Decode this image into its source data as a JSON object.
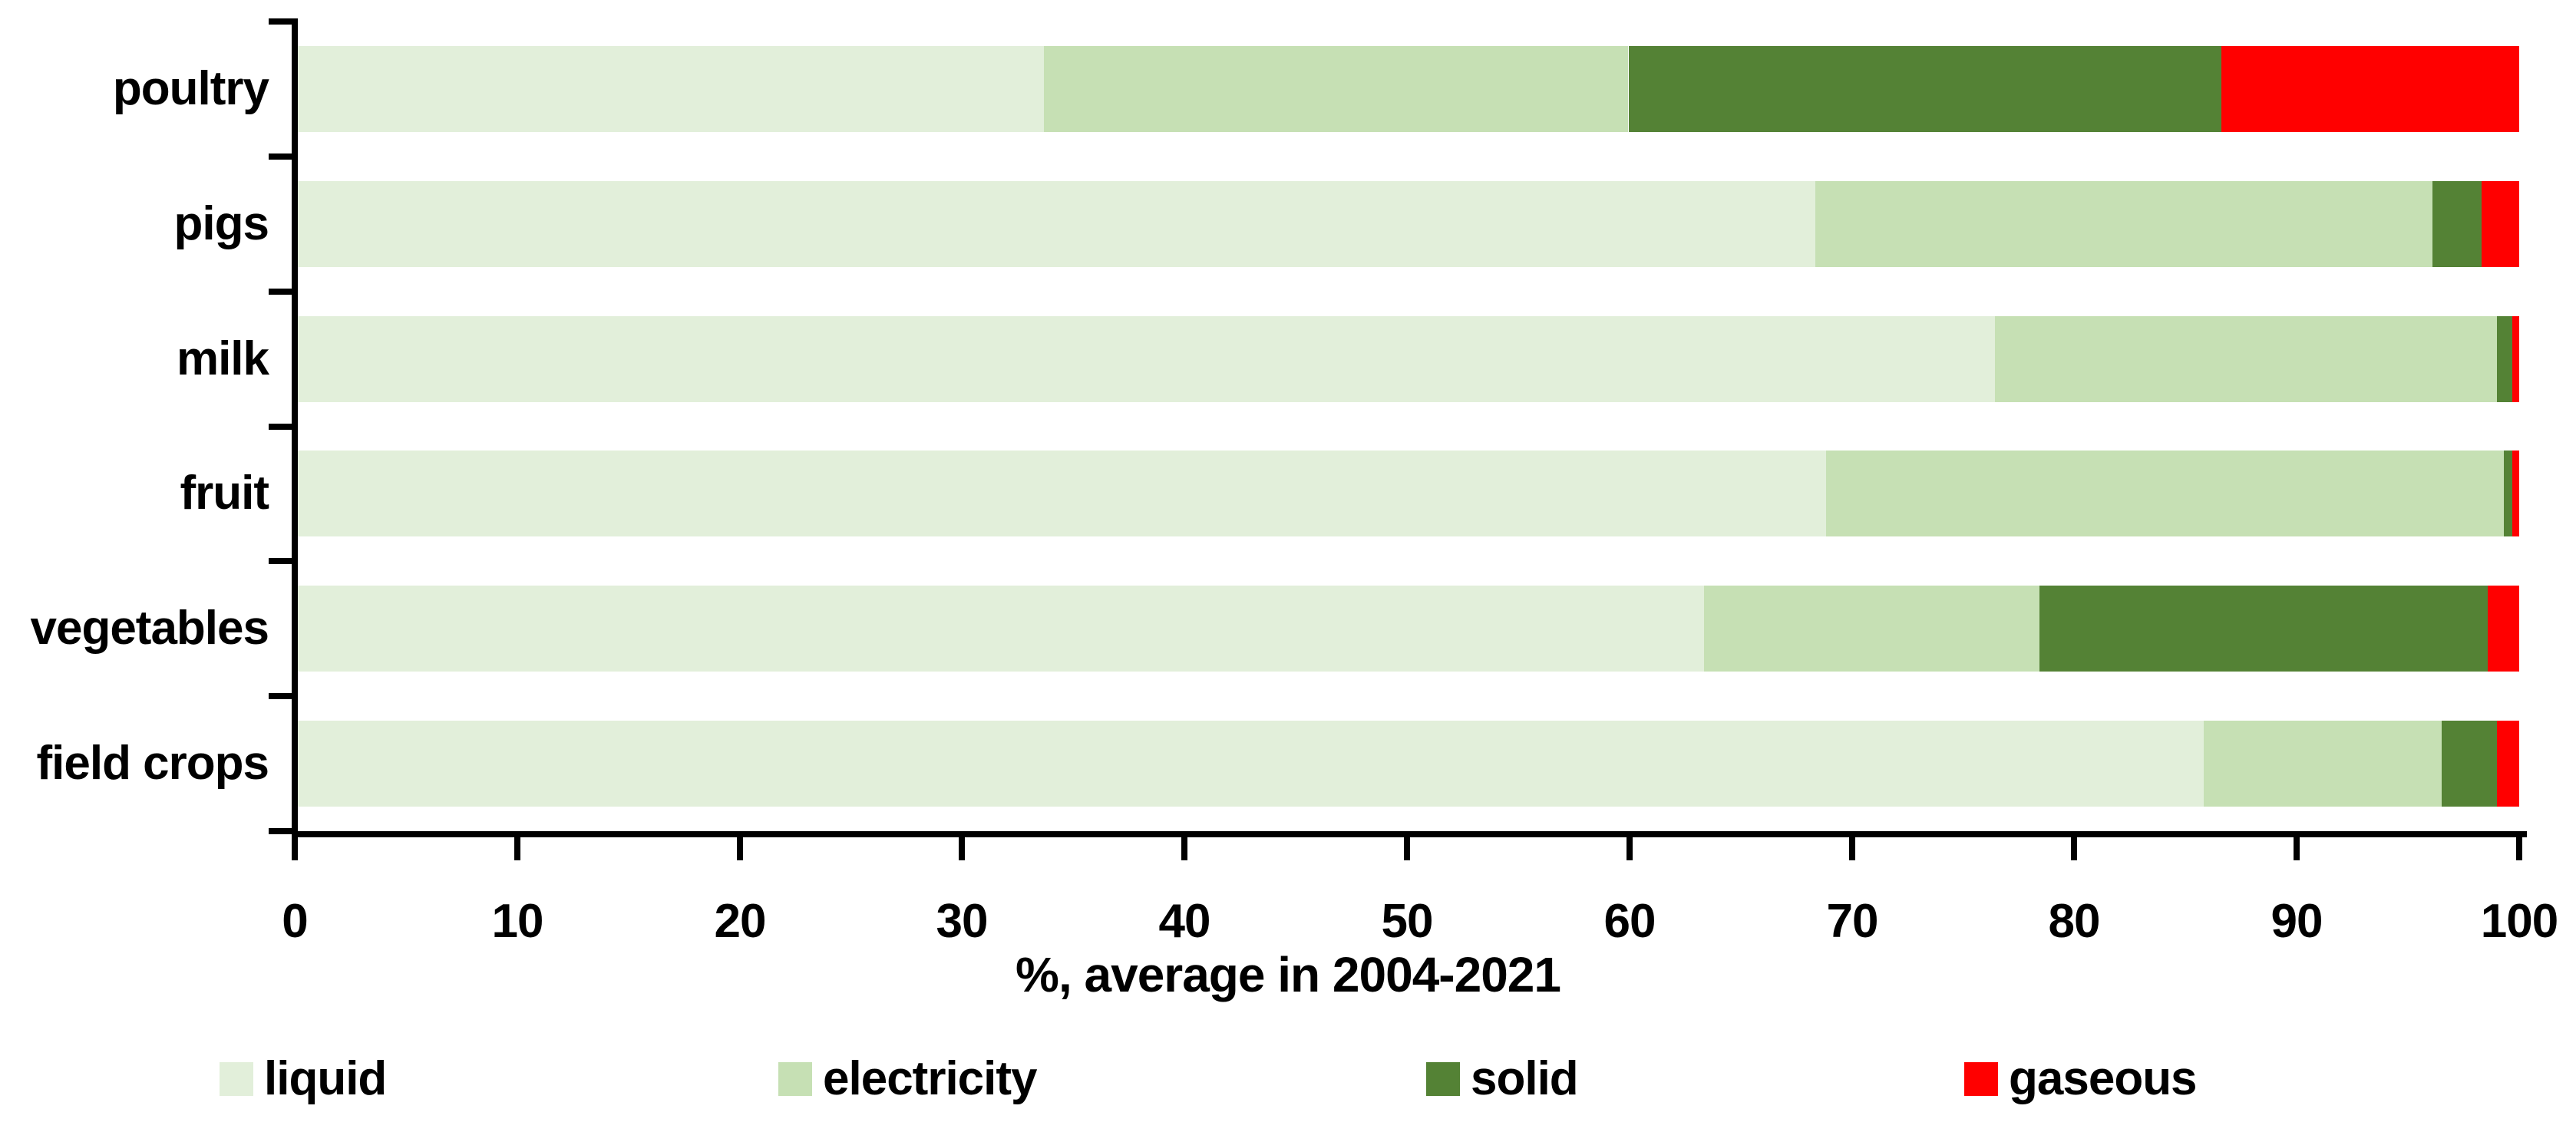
{
  "chart_data": {
    "type": "bar",
    "orientation": "horizontal",
    "stacked": true,
    "title": "",
    "xlabel": "%, average in 2004-2021",
    "ylabel": "",
    "xlim": [
      0,
      100
    ],
    "xticks": [
      0,
      10,
      20,
      30,
      40,
      50,
      60,
      70,
      80,
      90,
      100
    ],
    "grid": false,
    "legend_position": "bottom",
    "categories": [
      "poultry",
      "pigs",
      "milk",
      "fruit",
      "vegetables",
      "field crops"
    ],
    "series": [
      {
        "name": "liquid",
        "color": "#e2efda",
        "values": [
          33.6,
          68.3,
          76.4,
          68.8,
          63.3,
          85.8
        ]
      },
      {
        "name": "electricity",
        "color": "#c6e0b4",
        "values": [
          26.3,
          27.8,
          22.6,
          30.5,
          15.1,
          10.7
        ]
      },
      {
        "name": "solid",
        "color": "#548235",
        "values": [
          26.7,
          2.2,
          0.7,
          0.4,
          20.2,
          2.5
        ]
      },
      {
        "name": "gaseous",
        "color": "#ff0000",
        "values": [
          13.4,
          1.7,
          0.3,
          0.3,
          1.4,
          1.0
        ]
      }
    ],
    "axis_color": "#000000",
    "background_color": "#ffffff"
  }
}
